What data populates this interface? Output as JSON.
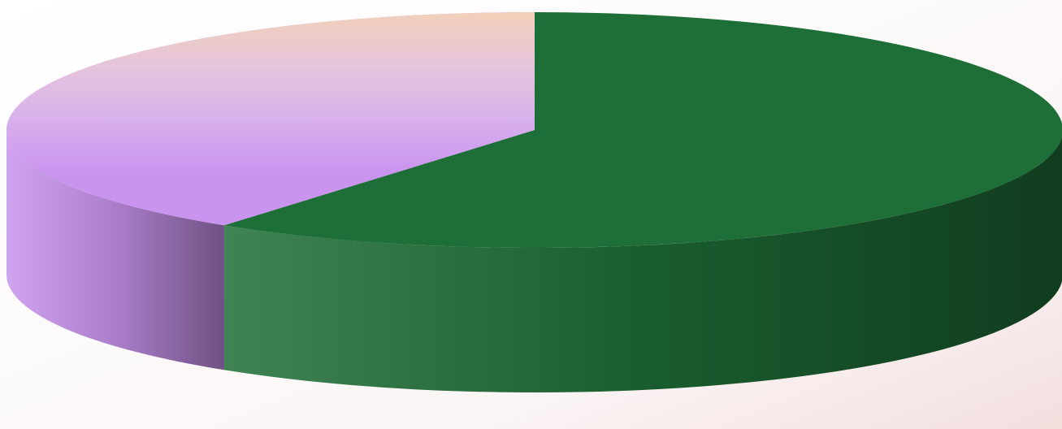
{
  "chart_data": {
    "type": "pie",
    "values": [
      60,
      40
    ],
    "colors": [
      "#1e6e37",
      "#c994ee"
    ]
  }
}
